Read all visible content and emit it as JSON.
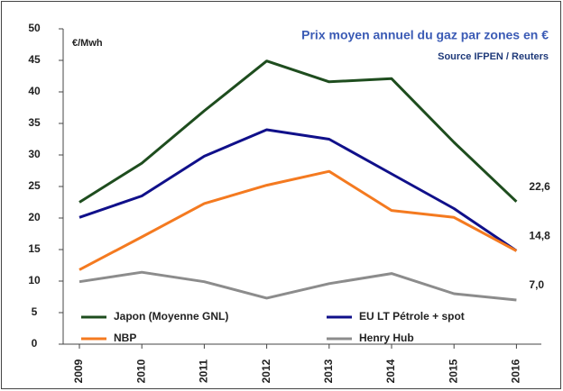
{
  "chart_data": {
    "type": "line",
    "title": "Prix moyen annuel du gaz par zones en €",
    "subtitle": "Source IFPEN / Reuters",
    "y_label": "€/Mwh",
    "categories": [
      "2009",
      "2010",
      "2011",
      "2012",
      "2013",
      "2014",
      "2015",
      "2016"
    ],
    "series": [
      {
        "name": "Japon (Moyenne GNL)",
        "color": "#1e4d1e",
        "values": [
          22.5,
          28.7,
          37,
          44.9,
          41.6,
          42.1,
          32,
          22.6
        ],
        "value_labels": [
          null,
          null,
          null,
          null,
          null,
          null,
          null,
          "22,6"
        ]
      },
      {
        "name": "EU LT Pétrole + spot",
        "color": "#10108a",
        "values": [
          20.1,
          23.5,
          29.8,
          34,
          32.5,
          27,
          21.5,
          14.8
        ],
        "value_labels": [
          null,
          null,
          null,
          null,
          null,
          null,
          null,
          "14,8"
        ]
      },
      {
        "name": "NBP",
        "color": "#f47a20",
        "values": [
          11.8,
          17,
          22.3,
          25.2,
          27.4,
          21.2,
          20.1,
          14.8
        ]
      },
      {
        "name": "Henry Hub",
        "color": "#8c8c8c",
        "values": [
          9.9,
          11.4,
          9.9,
          7.3,
          9.6,
          11.2,
          8.0,
          7.0
        ],
        "value_labels": [
          null,
          null,
          null,
          null,
          null,
          null,
          null,
          "7,0"
        ]
      }
    ],
    "ylim": [
      0,
      50
    ],
    "yticks": [
      0,
      5,
      10,
      15,
      20,
      25,
      30,
      35,
      40,
      45,
      50
    ],
    "grid": false,
    "legend": "lower center"
  }
}
